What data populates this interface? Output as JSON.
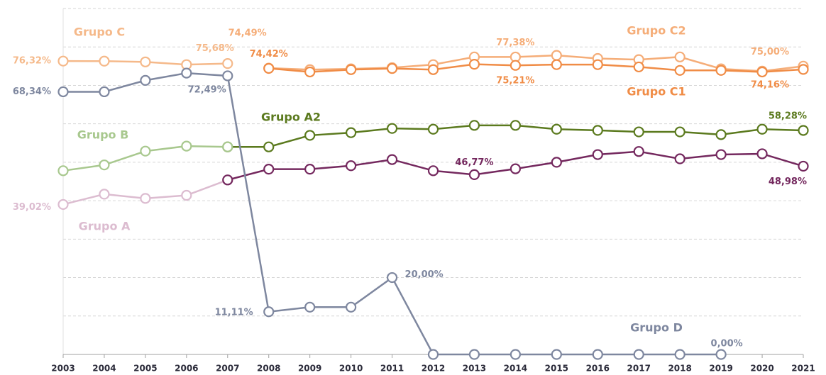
{
  "chart_data": {
    "type": "line",
    "categories": [
      "2003",
      "2004",
      "2005",
      "2006",
      "2007",
      "2008",
      "2009",
      "2010",
      "2011",
      "2012",
      "2013",
      "2014",
      "2015",
      "2016",
      "2017",
      "2018",
      "2019",
      "2020",
      "2021"
    ],
    "ylim": [
      0,
      90
    ],
    "yticks": [
      10,
      20,
      30,
      40,
      50,
      60,
      70,
      80,
      90
    ],
    "grid": true,
    "series": [
      {
        "name": "Grupo C",
        "color": "#f5b98a",
        "values": [
          76.32,
          76.3,
          76.1,
          75.4,
          75.68,
          null,
          null,
          null,
          null,
          null,
          null,
          null,
          null,
          null,
          null,
          null,
          null,
          null,
          null
        ],
        "value_labels": [
          "76,32%",
          null,
          null,
          null,
          "75,68%",
          null,
          null,
          null,
          null,
          null,
          null,
          null,
          null,
          null,
          null,
          null,
          null,
          null,
          null
        ]
      },
      {
        "name": "Grupo C2",
        "color": "#f5ad78",
        "values": [
          null,
          null,
          null,
          null,
          null,
          74.49,
          74.1,
          74.3,
          74.6,
          75.4,
          77.4,
          77.38,
          77.8,
          77.0,
          76.7,
          77.4,
          74.3,
          73.7,
          75.0
        ],
        "value_labels": [
          null,
          null,
          null,
          null,
          null,
          "74,49%",
          null,
          null,
          null,
          null,
          null,
          "77,38%",
          null,
          null,
          null,
          null,
          null,
          null,
          "75,00%"
        ]
      },
      {
        "name": "Grupo C1",
        "color": "#f08c46",
        "values": [
          null,
          null,
          null,
          null,
          null,
          74.42,
          73.5,
          74.1,
          74.4,
          74.1,
          75.5,
          75.21,
          75.4,
          75.4,
          74.8,
          73.9,
          73.9,
          73.5,
          74.16
        ],
        "value_labels": [
          null,
          null,
          null,
          null,
          null,
          "74,42%",
          null,
          null,
          null,
          null,
          null,
          "75,21%",
          null,
          null,
          null,
          null,
          null,
          null,
          "74,16%"
        ]
      },
      {
        "name": "Grupo A2",
        "color": "#5b7a1e",
        "values": [
          null,
          null,
          null,
          null,
          54.0,
          54.0,
          57.0,
          57.7,
          58.8,
          58.6,
          59.6,
          59.6,
          58.6,
          58.3,
          57.9,
          57.9,
          57.2,
          58.6,
          58.28
        ],
        "value_labels": [
          null,
          null,
          null,
          null,
          null,
          null,
          null,
          null,
          null,
          null,
          null,
          null,
          null,
          null,
          null,
          null,
          null,
          null,
          "58,28%"
        ]
      },
      {
        "name": "Grupo B",
        "color": "#a8c88e",
        "values": [
          47.8,
          49.3,
          52.9,
          54.2,
          54.0,
          null,
          null,
          null,
          null,
          null,
          null,
          null,
          null,
          null,
          null,
          null,
          null,
          null,
          null
        ]
      },
      {
        "name": "Grupo A",
        "color": "#dcbcd0",
        "values": [
          39.02,
          41.7,
          40.6,
          41.4,
          45.4,
          null,
          null,
          null,
          null,
          null,
          null,
          null,
          null,
          null,
          null,
          null,
          null,
          null,
          null
        ],
        "value_labels": [
          "39,02%",
          null,
          null,
          null,
          null,
          null,
          null,
          null,
          null,
          null,
          null,
          null,
          null,
          null,
          null,
          null,
          null,
          null,
          null
        ]
      },
      {
        "color": "#74285e",
        "values": [
          null,
          null,
          null,
          null,
          45.4,
          48.2,
          48.2,
          49.1,
          50.7,
          47.8,
          46.77,
          48.3,
          50.0,
          52.0,
          52.8,
          50.9,
          52.0,
          52.2,
          48.98
        ],
        "value_labels": [
          null,
          null,
          null,
          null,
          null,
          null,
          null,
          null,
          null,
          null,
          "46,77%",
          null,
          null,
          null,
          null,
          null,
          null,
          null,
          "48,98%"
        ]
      },
      {
        "name": "Grupo D",
        "color": "#7e879f",
        "values": [
          68.34,
          68.34,
          71.3,
          73.2,
          72.49,
          11.11,
          12.3,
          12.3,
          20.0,
          0,
          0,
          0,
          0,
          0,
          0,
          0,
          0,
          null,
          null
        ],
        "value_labels": [
          "68,34%",
          null,
          null,
          null,
          "72,49%",
          "11,11%",
          null,
          null,
          "20,00%",
          null,
          null,
          null,
          null,
          null,
          null,
          null,
          "0,00%",
          null,
          null
        ]
      }
    ]
  }
}
